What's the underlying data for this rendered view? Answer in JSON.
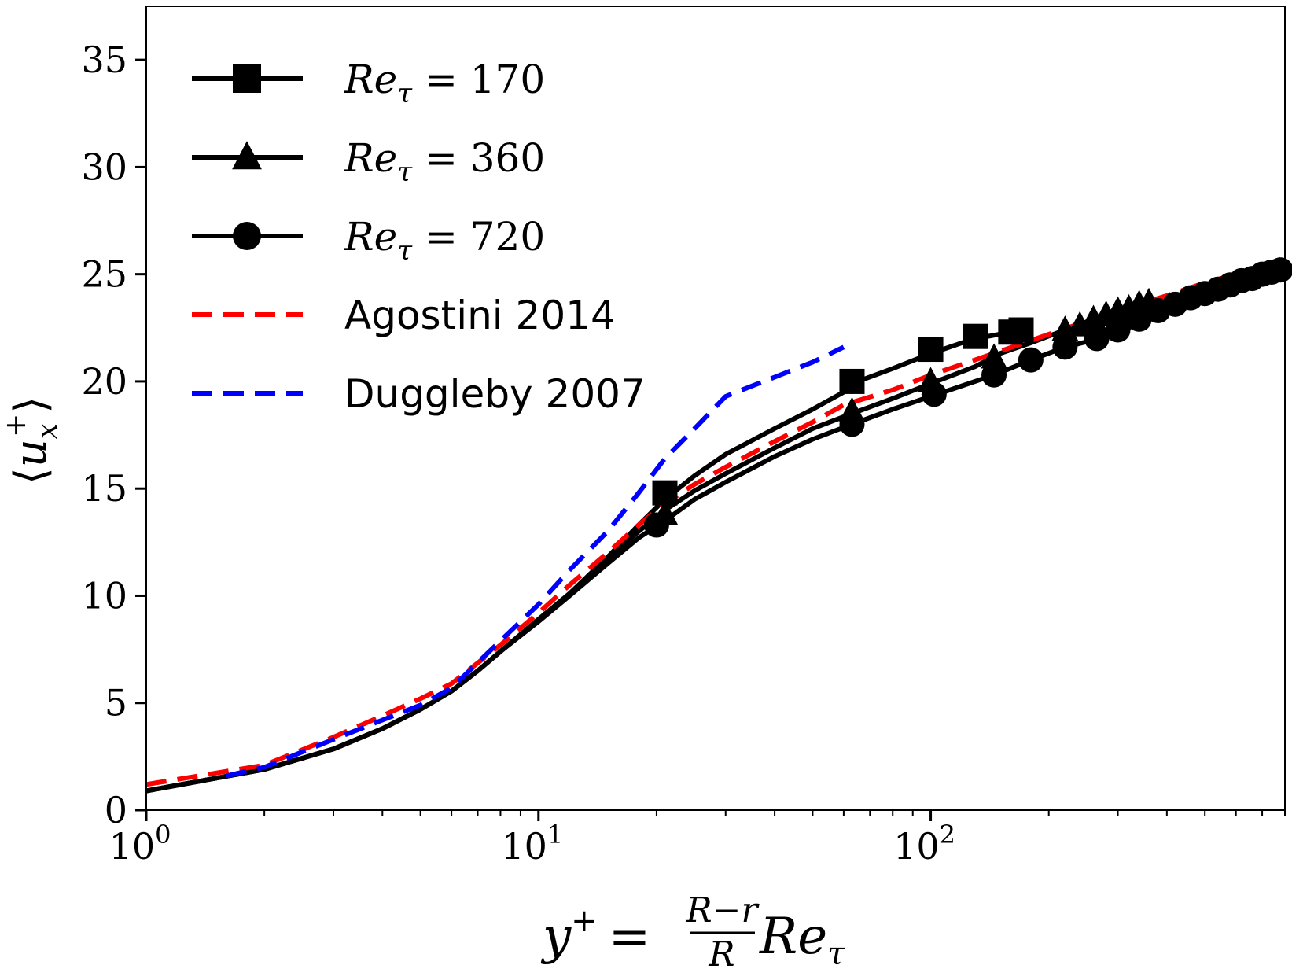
{
  "chart_data": {
    "type": "line",
    "title": "",
    "xlabel": "y+ = (R−r)/R Reτ",
    "xlabel_parts": {
      "lhs": "y",
      "sup": "+",
      "eq": "=",
      "num": "R−r",
      "den": "R",
      "re": "Re",
      "sub": "τ"
    },
    "ylabel": "⟨u_x^+⟩",
    "ylabel_parts": {
      "open": "⟨",
      "var": "u",
      "sub": "x",
      "sup": "+",
      "close": "⟩"
    },
    "xscale": "log",
    "xlim": [
      1,
      800
    ],
    "ylim": [
      0,
      37.5
    ],
    "yticks": [
      0,
      5,
      10,
      15,
      20,
      25,
      30,
      35
    ],
    "yticklabels": [
      "0",
      "5",
      "10",
      "15",
      "20",
      "25",
      "30",
      "35"
    ],
    "xticks": [
      {
        "value": 1,
        "base": "10",
        "exp": "0"
      },
      {
        "value": 10,
        "base": "10",
        "exp": "1"
      },
      {
        "value": 100,
        "base": "10",
        "exp": "2"
      }
    ],
    "legend_position": "top-left",
    "series": [
      {
        "name": "Reτ = 170",
        "legend_parts": {
          "re": "Re",
          "sub": "τ",
          "rest": " = 170"
        },
        "color": "#000000",
        "dash": "solid",
        "marker": "square",
        "line": [
          [
            1,
            0.9
          ],
          [
            2,
            1.9
          ],
          [
            3,
            2.85
          ],
          [
            4,
            3.8
          ],
          [
            5,
            4.7
          ],
          [
            6,
            5.55
          ],
          [
            7,
            6.5
          ],
          [
            8,
            7.4
          ],
          [
            10,
            8.9
          ],
          [
            12,
            10.1
          ],
          [
            15,
            11.8
          ],
          [
            18,
            13.3
          ],
          [
            21,
            14.5
          ],
          [
            25,
            15.6
          ],
          [
            30,
            16.6
          ],
          [
            40,
            17.8
          ],
          [
            50,
            18.7
          ],
          [
            60,
            19.5
          ],
          [
            63,
            19.9
          ],
          [
            80,
            20.6
          ],
          [
            100,
            21.3
          ],
          [
            120,
            21.8
          ],
          [
            140,
            22.1
          ],
          [
            160,
            22.3
          ],
          [
            170,
            22.4
          ]
        ],
        "markers": [
          [
            21,
            14.8
          ],
          [
            63,
            20.0
          ],
          [
            100,
            21.5
          ],
          [
            130,
            22.1
          ],
          [
            160,
            22.3
          ],
          [
            170,
            22.4
          ]
        ]
      },
      {
        "name": "Reτ = 360",
        "legend_parts": {
          "re": "Re",
          "sub": "τ",
          "rest": " = 360"
        },
        "color": "#000000",
        "dash": "solid",
        "marker": "triangle",
        "line": [
          [
            1,
            0.9
          ],
          [
            2,
            1.9
          ],
          [
            3,
            2.85
          ],
          [
            4,
            3.8
          ],
          [
            5,
            4.7
          ],
          [
            6,
            5.55
          ],
          [
            7,
            6.5
          ],
          [
            8,
            7.4
          ],
          [
            10,
            8.9
          ],
          [
            12,
            10.1
          ],
          [
            15,
            11.7
          ],
          [
            18,
            13.0
          ],
          [
            21,
            14.0
          ],
          [
            25,
            14.9
          ],
          [
            30,
            15.7
          ],
          [
            40,
            16.9
          ],
          [
            50,
            17.8
          ],
          [
            63,
            18.5
          ],
          [
            80,
            19.2
          ],
          [
            100,
            19.9
          ],
          [
            130,
            20.7
          ],
          [
            150,
            21.3
          ],
          [
            180,
            21.8
          ],
          [
            220,
            22.4
          ],
          [
            260,
            22.9
          ],
          [
            300,
            23.3
          ],
          [
            340,
            23.6
          ],
          [
            360,
            23.7
          ]
        ],
        "markers": [
          [
            21,
            13.8
          ],
          [
            63,
            18.6
          ],
          [
            100,
            20.0
          ],
          [
            145,
            21.1
          ],
          [
            220,
            22.4
          ],
          [
            240,
            22.6
          ],
          [
            260,
            22.9
          ],
          [
            280,
            23.1
          ],
          [
            300,
            23.3
          ],
          [
            320,
            23.4
          ],
          [
            340,
            23.6
          ],
          [
            360,
            23.7
          ]
        ]
      },
      {
        "name": "Reτ = 720",
        "legend_parts": {
          "re": "Re",
          "sub": "τ",
          "rest": " = 720"
        },
        "color": "#000000",
        "dash": "solid",
        "marker": "circle",
        "line": [
          [
            1,
            0.9
          ],
          [
            2,
            1.9
          ],
          [
            3,
            2.85
          ],
          [
            4,
            3.8
          ],
          [
            5,
            4.7
          ],
          [
            6,
            5.55
          ],
          [
            7,
            6.5
          ],
          [
            8,
            7.4
          ],
          [
            10,
            8.8
          ],
          [
            12,
            10.0
          ],
          [
            15,
            11.5
          ],
          [
            18,
            12.7
          ],
          [
            21,
            13.5
          ],
          [
            25,
            14.5
          ],
          [
            30,
            15.3
          ],
          [
            40,
            16.5
          ],
          [
            50,
            17.3
          ],
          [
            63,
            18.0
          ],
          [
            80,
            18.7
          ],
          [
            100,
            19.3
          ],
          [
            145,
            20.3
          ],
          [
            180,
            21.0
          ],
          [
            220,
            21.6
          ],
          [
            270,
            22.0
          ],
          [
            330,
            22.6
          ],
          [
            400,
            23.2
          ],
          [
            500,
            23.9
          ],
          [
            600,
            24.5
          ],
          [
            700,
            25.0
          ],
          [
            800,
            25.3
          ]
        ],
        "markers": [
          [
            20,
            13.3
          ],
          [
            63,
            18.0
          ],
          [
            102,
            19.4
          ],
          [
            145,
            20.3
          ],
          [
            180,
            21.0
          ],
          [
            220,
            21.6
          ],
          [
            265,
            22.0
          ],
          [
            300,
            22.4
          ],
          [
            340,
            22.9
          ],
          [
            380,
            23.3
          ],
          [
            420,
            23.6
          ],
          [
            460,
            23.9
          ],
          [
            500,
            24.1
          ],
          [
            540,
            24.3
          ],
          [
            580,
            24.5
          ],
          [
            620,
            24.7
          ],
          [
            660,
            24.8
          ],
          [
            700,
            25.0
          ],
          [
            740,
            25.1
          ],
          [
            780,
            25.2
          ]
        ]
      },
      {
        "name": "Agostini 2014",
        "legend_parts": {
          "re": "",
          "sub": "",
          "rest": "Agostini 2014"
        },
        "color": "#ff0000",
        "dash": "dashed",
        "marker": "none",
        "line": [
          [
            1,
            1.2
          ],
          [
            2,
            2.1
          ],
          [
            3,
            3.4
          ],
          [
            4,
            4.4
          ],
          [
            5,
            5.2
          ],
          [
            6,
            5.9
          ],
          [
            8,
            7.7
          ],
          [
            10,
            9.2
          ],
          [
            12,
            10.5
          ],
          [
            15,
            12.0
          ],
          [
            18,
            13.3
          ],
          [
            21,
            14.3
          ],
          [
            25,
            15.2
          ],
          [
            30,
            16.0
          ],
          [
            40,
            17.2
          ],
          [
            50,
            18.1
          ],
          [
            60,
            18.9
          ],
          [
            80,
            19.6
          ],
          [
            100,
            20.3
          ],
          [
            150,
            21.4
          ],
          [
            200,
            22.2
          ],
          [
            300,
            23.3
          ],
          [
            400,
            24.0
          ],
          [
            500,
            24.6
          ],
          [
            600,
            25.0
          ],
          [
            700,
            25.4
          ],
          [
            780,
            25.7
          ]
        ],
        "markers": []
      },
      {
        "name": "Duggleby 2007",
        "legend_parts": {
          "re": "",
          "sub": "",
          "rest": "Duggleby 2007"
        },
        "color": "#0000ff",
        "dash": "dashed",
        "marker": "none",
        "line": [
          [
            1.6,
            1.6
          ],
          [
            2,
            2.0
          ],
          [
            3,
            3.3
          ],
          [
            4,
            4.2
          ],
          [
            5,
            4.9
          ],
          [
            6,
            5.7
          ],
          [
            8,
            7.9
          ],
          [
            10,
            9.6
          ],
          [
            12,
            11.2
          ],
          [
            15,
            13.0
          ],
          [
            18,
            14.8
          ],
          [
            21,
            16.4
          ],
          [
            25,
            17.8
          ],
          [
            30,
            19.3
          ],
          [
            33,
            19.6
          ],
          [
            40,
            20.2
          ],
          [
            50,
            20.9
          ],
          [
            60,
            21.6
          ]
        ],
        "markers": []
      }
    ]
  }
}
